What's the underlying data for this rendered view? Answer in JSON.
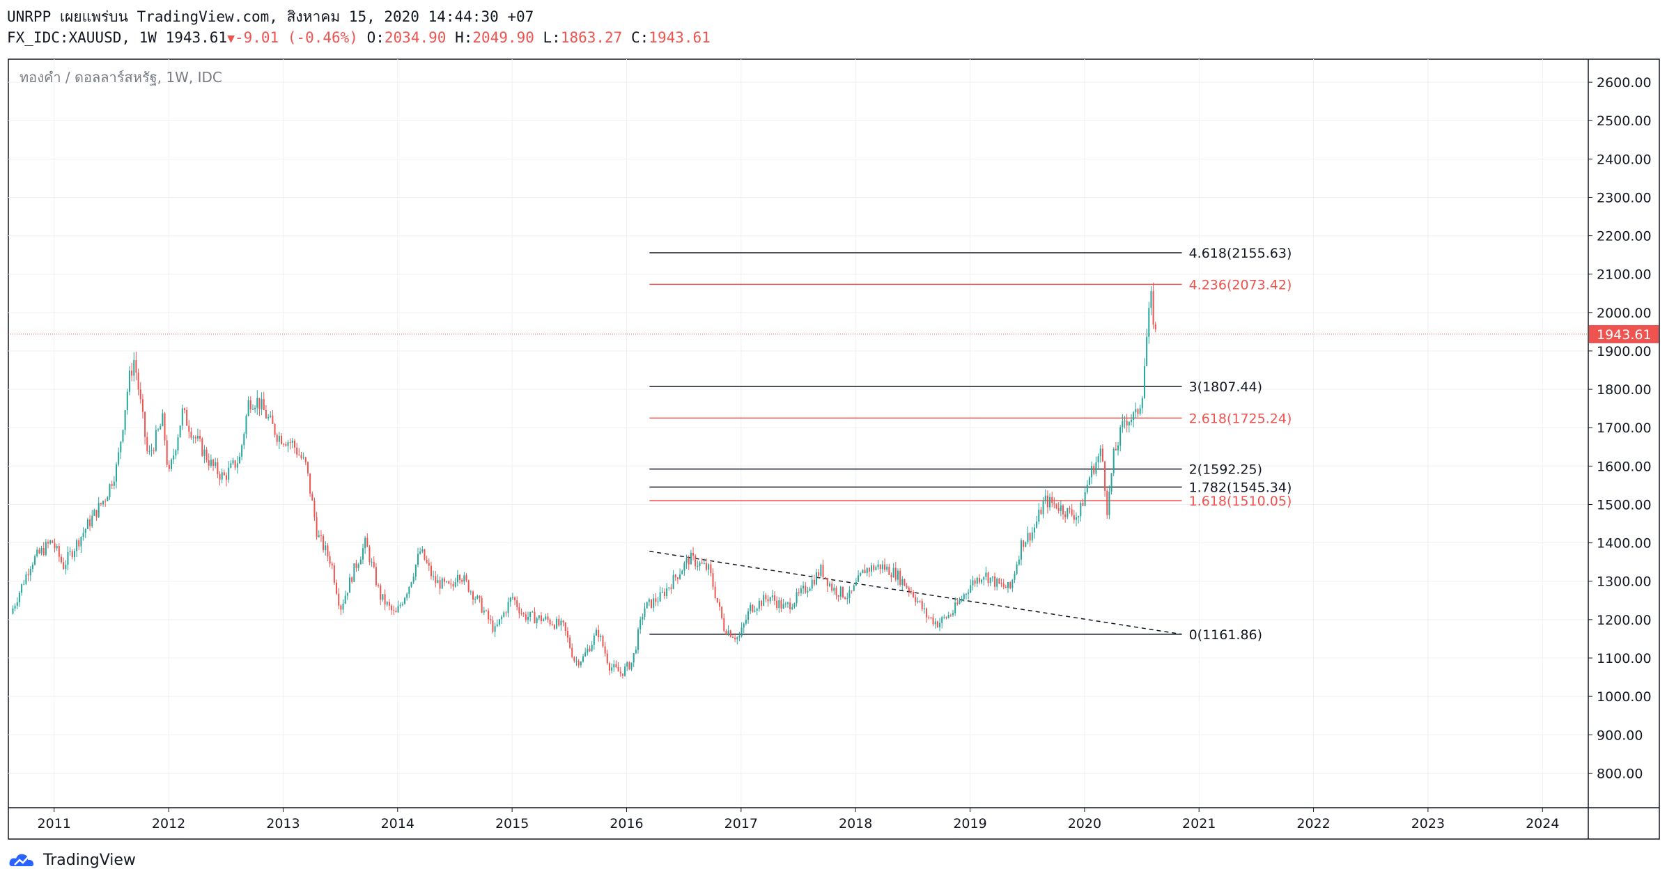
{
  "header": {
    "line1": "UNRPP เผยแพร่บน TradingView.com, สิงหาคม 15, 2020 14:44:30 +07",
    "symbol": "FX_IDC:XAUUSD, 1W 1943.61",
    "change": "-9.01 (-0.46%)",
    "o_label": "O:",
    "o_value": "2034.90",
    "h_label": "H:",
    "h_value": "2049.90",
    "l_label": "L:",
    "l_value": "1863.27",
    "c_label": "C:",
    "c_value": "1943.61",
    "triangle": "▼"
  },
  "brand": {
    "name": "TradingView"
  },
  "colors": {
    "up": "#26a69a",
    "down": "#ef5350",
    "grid": "#eef0f3",
    "axis": "#131722"
  },
  "chart_data": {
    "type": "candlestick",
    "title": "ทองคำ / ดอลลาร์สหรัฐ, 1W, IDC",
    "x_ticks": [
      "2011",
      "2012",
      "2013",
      "2014",
      "2015",
      "2016",
      "2017",
      "2018",
      "2019",
      "2020",
      "2021",
      "2022",
      "2023",
      "2024"
    ],
    "y_ticks": [
      800,
      900,
      1000,
      1100,
      1200,
      1300,
      1400,
      1500,
      1600,
      1700,
      1800,
      1900,
      2000,
      2100,
      2200,
      2300,
      2400,
      2500,
      2600
    ],
    "y_tick_labels": [
      "800.00",
      "900.00",
      "1000.00",
      "1100.00",
      "1200.00",
      "1300.00",
      "1400.00",
      "1500.00",
      "1600.00",
      "1700.00",
      "1800.00",
      "1900.00",
      "2000.00",
      "2100.00",
      "2200.00",
      "2300.00",
      "2400.00",
      "2500.00",
      "2600.00"
    ],
    "ylim": [
      710,
      2660
    ],
    "xlim": [
      2010.6,
      2024.4
    ],
    "last_price": 1943.61,
    "last_price_label": "1943.61",
    "price_path": [
      [
        2010.62,
        1215
      ],
      [
        2010.8,
        1350
      ],
      [
        2010.98,
        1405
      ],
      [
        2011.08,
        1340
      ],
      [
        2011.3,
        1450
      ],
      [
        2011.45,
        1520
      ],
      [
        2011.55,
        1600
      ],
      [
        2011.65,
        1820
      ],
      [
        2011.7,
        1880
      ],
      [
        2011.82,
        1620
      ],
      [
        2011.95,
        1720
      ],
      [
        2012.0,
        1570
      ],
      [
        2012.12,
        1740
      ],
      [
        2012.22,
        1680
      ],
      [
        2012.38,
        1600
      ],
      [
        2012.48,
        1570
      ],
      [
        2012.62,
        1620
      ],
      [
        2012.7,
        1770
      ],
      [
        2012.78,
        1770
      ],
      [
        2012.95,
        1680
      ],
      [
        2013.08,
        1660
      ],
      [
        2013.2,
        1600
      ],
      [
        2013.3,
        1420
      ],
      [
        2013.42,
        1350
      ],
      [
        2013.5,
        1230
      ],
      [
        2013.62,
        1330
      ],
      [
        2013.72,
        1400
      ],
      [
        2013.85,
        1260
      ],
      [
        2013.98,
        1210
      ],
      [
        2014.1,
        1290
      ],
      [
        2014.2,
        1380
      ],
      [
        2014.32,
        1300
      ],
      [
        2014.48,
        1280
      ],
      [
        2014.52,
        1330
      ],
      [
        2014.72,
        1240
      ],
      [
        2014.85,
        1170
      ],
      [
        2015.0,
        1260
      ],
      [
        2015.1,
        1210
      ],
      [
        2015.3,
        1200
      ],
      [
        2015.45,
        1180
      ],
      [
        2015.55,
        1090
      ],
      [
        2015.62,
        1100
      ],
      [
        2015.75,
        1170
      ],
      [
        2015.85,
        1080
      ],
      [
        2015.95,
        1060
      ],
      [
        2016.05,
        1090
      ],
      [
        2016.15,
        1230
      ],
      [
        2016.3,
        1260
      ],
      [
        2016.45,
        1320
      ],
      [
        2016.55,
        1360
      ],
      [
        2016.72,
        1330
      ],
      [
        2016.85,
        1180
      ],
      [
        2016.98,
        1150
      ],
      [
        2017.08,
        1230
      ],
      [
        2017.25,
        1260
      ],
      [
        2017.38,
        1230
      ],
      [
        2017.5,
        1260
      ],
      [
        2017.62,
        1300
      ],
      [
        2017.7,
        1330
      ],
      [
        2017.8,
        1280
      ],
      [
        2017.95,
        1260
      ],
      [
        2018.08,
        1330
      ],
      [
        2018.22,
        1340
      ],
      [
        2018.35,
        1320
      ],
      [
        2018.5,
        1270
      ],
      [
        2018.62,
        1210
      ],
      [
        2018.72,
        1190
      ],
      [
        2018.85,
        1220
      ],
      [
        2019.0,
        1290
      ],
      [
        2019.12,
        1320
      ],
      [
        2019.25,
        1290
      ],
      [
        2019.35,
        1280
      ],
      [
        2019.45,
        1400
      ],
      [
        2019.55,
        1430
      ],
      [
        2019.65,
        1510
      ],
      [
        2019.75,
        1500
      ],
      [
        2019.85,
        1480
      ],
      [
        2019.95,
        1470
      ],
      [
        2020.05,
        1580
      ],
      [
        2020.15,
        1640
      ],
      [
        2020.2,
        1480
      ],
      [
        2020.25,
        1620
      ],
      [
        2020.35,
        1720
      ],
      [
        2020.45,
        1730
      ],
      [
        2020.5,
        1780
      ],
      [
        2020.55,
        1960
      ],
      [
        2020.58,
        2035
      ],
      [
        2020.62,
        1943.61
      ]
    ],
    "fib_levels": [
      {
        "ratio": "4.618",
        "value": 2155.63,
        "label": "4.618(2155.63)",
        "color": "#131722"
      },
      {
        "ratio": "4.236",
        "value": 2073.42,
        "label": "4.236(2073.42)",
        "color": "#ef5350"
      },
      {
        "ratio": "3",
        "value": 1807.44,
        "label": "3(1807.44)",
        "color": "#131722"
      },
      {
        "ratio": "2.618",
        "value": 1725.24,
        "label": "2.618(1725.24)",
        "color": "#ef5350"
      },
      {
        "ratio": "2",
        "value": 1592.25,
        "label": "2(1592.25)",
        "color": "#131722"
      },
      {
        "ratio": "1.782",
        "value": 1545.34,
        "label": "1.782(1545.34)",
        "color": "#131722"
      },
      {
        "ratio": "1.618",
        "value": 1510.05,
        "label": "1.618(1510.05)",
        "color": "#ef5350"
      },
      {
        "ratio": "0",
        "value": 1161.86,
        "label": "0(1161.86)",
        "color": "#131722"
      }
    ],
    "fib_x_range": [
      2016.2,
      2020.85
    ],
    "trendline": [
      [
        2016.2,
        1378
      ],
      [
        2020.85,
        1161.86
      ]
    ]
  }
}
